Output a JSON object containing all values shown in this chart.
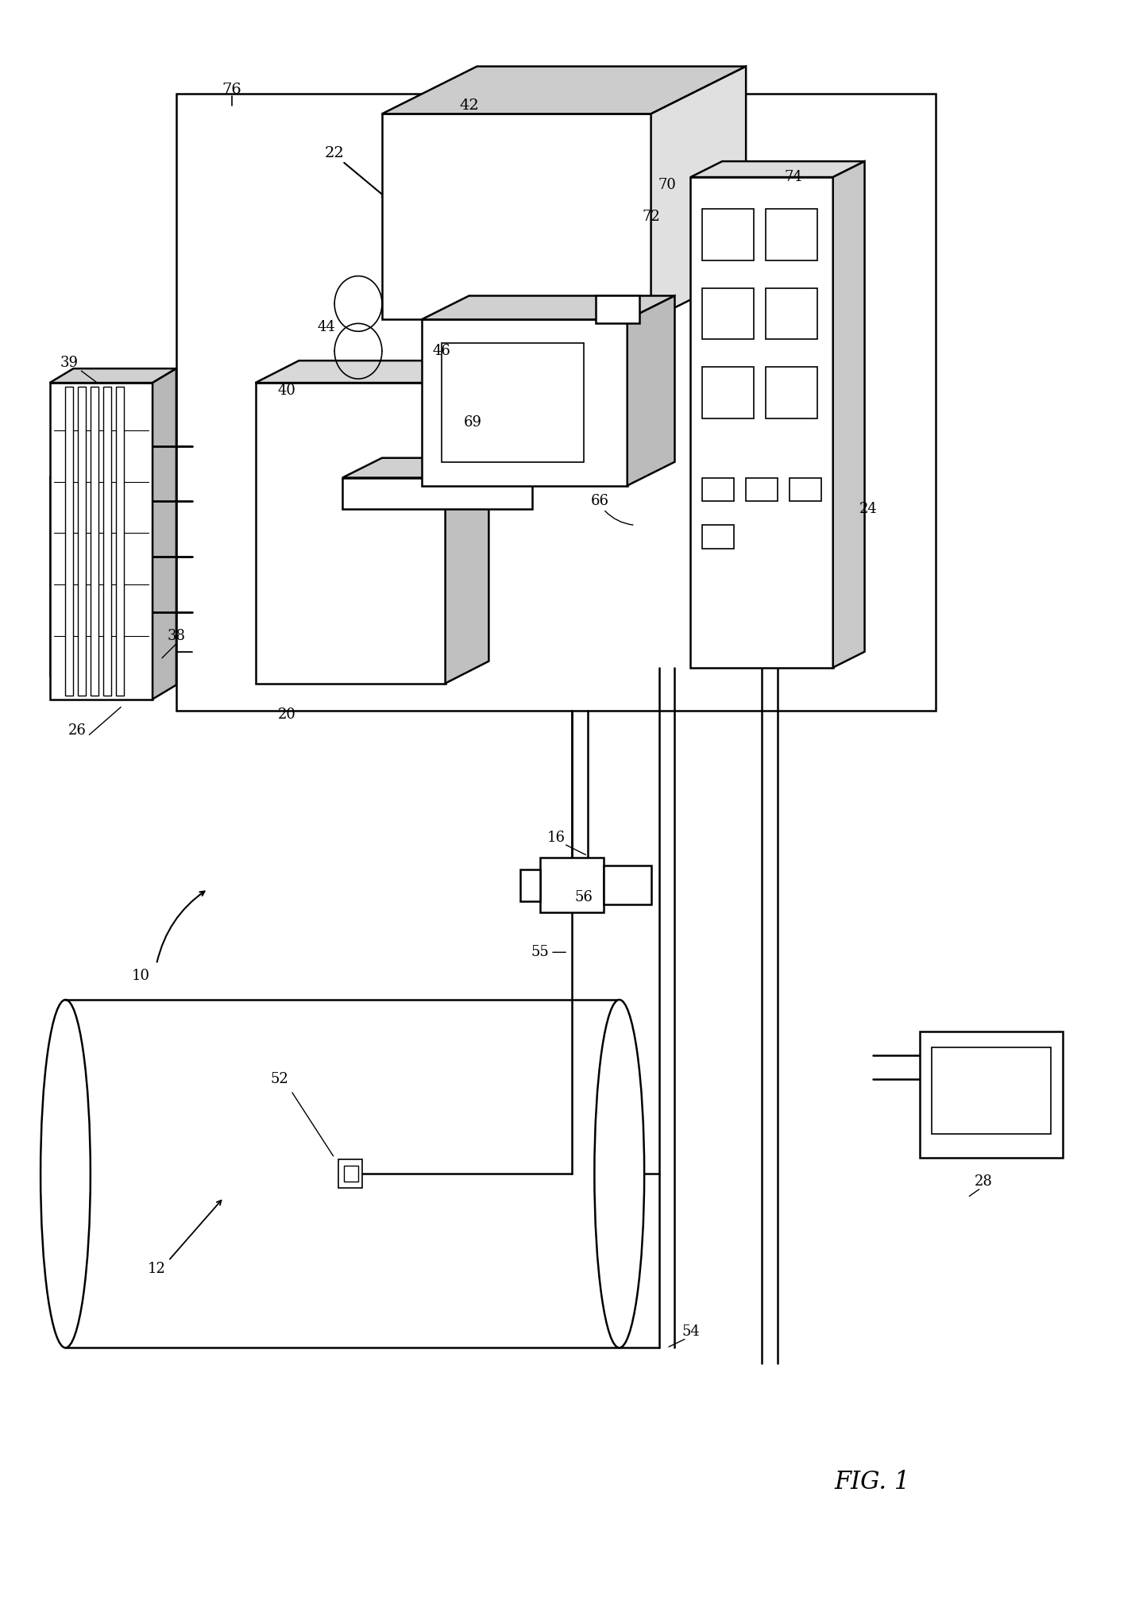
{
  "bg_color": "#ffffff",
  "line_color": "#000000",
  "fig_width": 14.34,
  "fig_height": 20.2,
  "lw": 1.8
}
